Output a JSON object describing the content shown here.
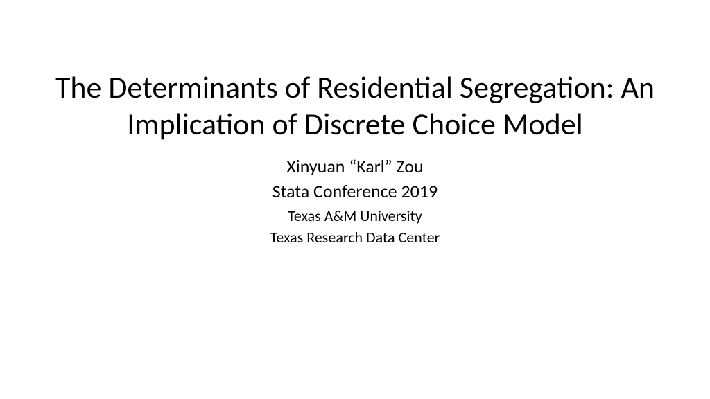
{
  "slide": {
    "title": "The Determinants of Residential Segregation: An Implication of Discrete Choice Model",
    "author": "Xinyuan “Karl” Zou",
    "conference": "Stata Conference 2019",
    "affiliation1": "Texas A&M University",
    "affiliation2": "Texas Research Data Center"
  },
  "style": {
    "background_color": "#ffffff",
    "text_color": "#000000",
    "title_fontsize": 44,
    "author_fontsize": 26,
    "conference_fontsize": 26,
    "affiliation_fontsize": 22,
    "font_family": "Calibri"
  }
}
